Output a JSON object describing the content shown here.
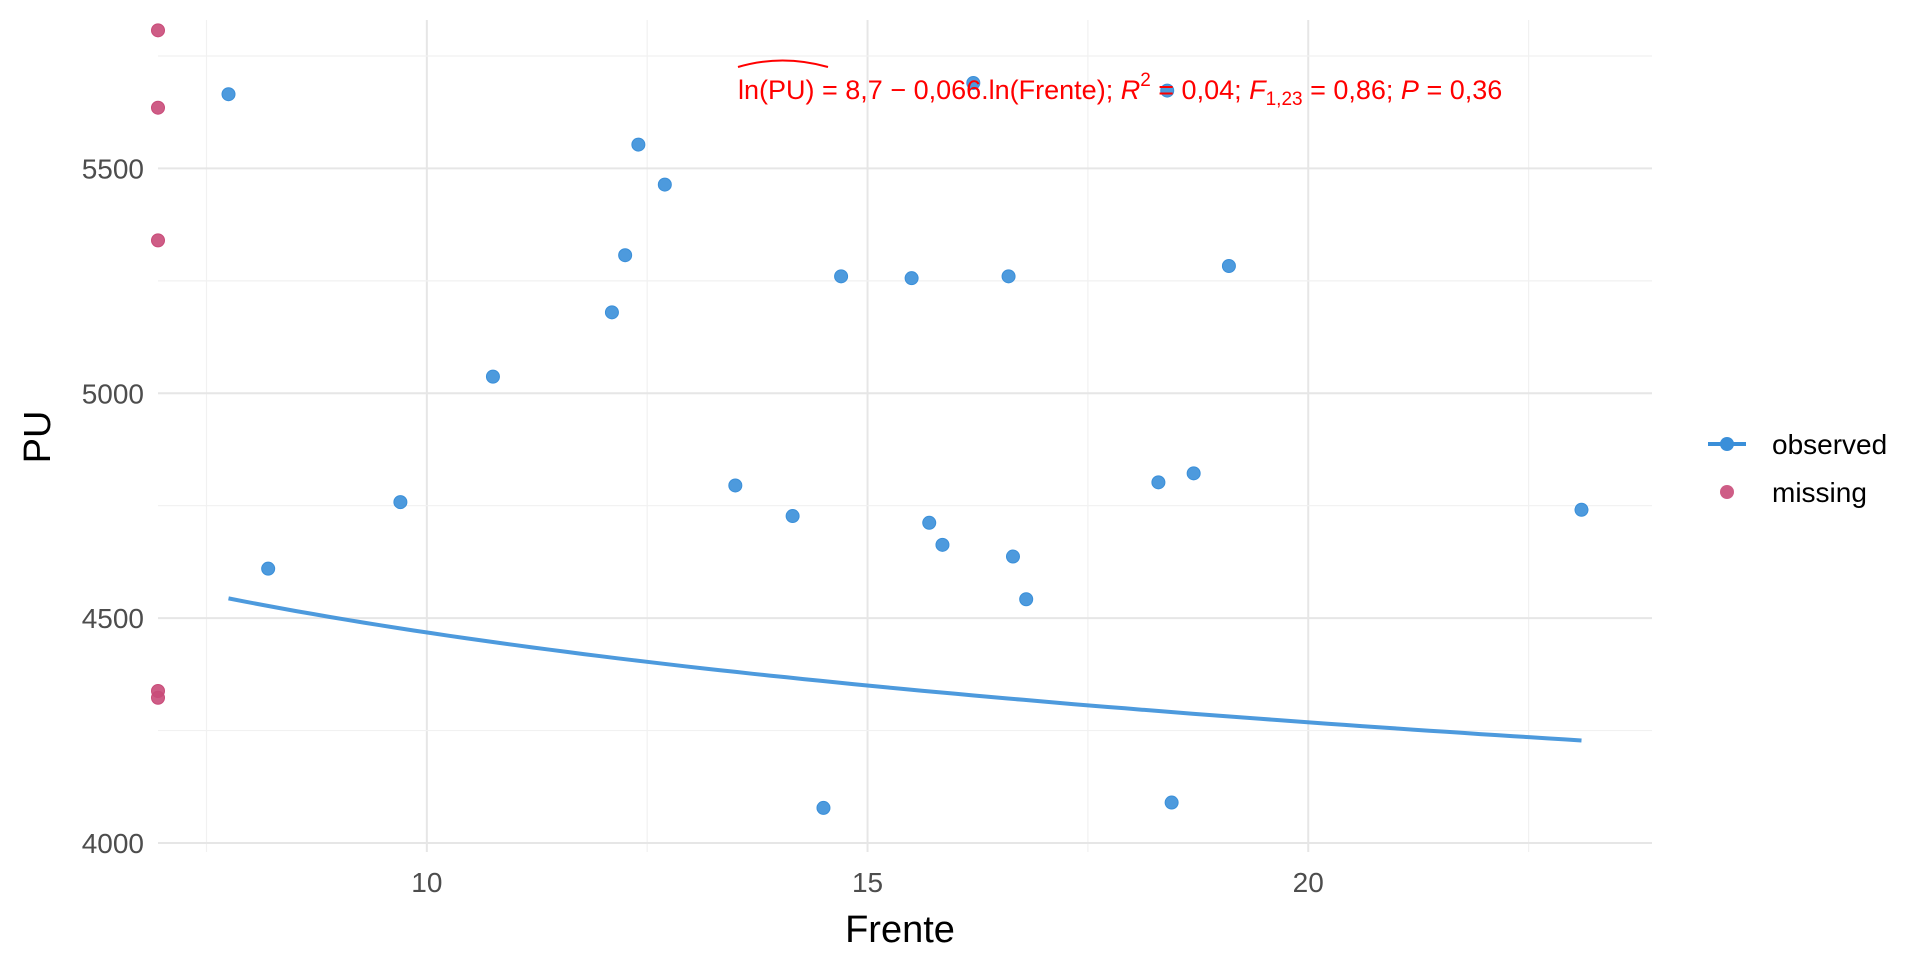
{
  "chart_data": {
    "type": "scatter",
    "xlabel": "Frente",
    "ylabel": "PU",
    "xlim": [
      6.95,
      23.9
    ],
    "ylim": [
      3980,
      5830
    ],
    "x_ticks": [
      10,
      15,
      20
    ],
    "y_ticks": [
      4000,
      4500,
      5000,
      5500
    ],
    "x_tick_labels": [
      "10",
      "15",
      "20"
    ],
    "y_tick_labels": [
      "4000",
      "4500",
      "5000",
      "5500"
    ],
    "grid": true,
    "legend_position": "right",
    "annotation": {
      "hat_term": "ln(PU)",
      "equation": " = 8,7 − 0,066.ln(Frente); ",
      "r2_symbol": "R",
      "r2_exp": "2",
      "r2_value": " = 0,04; ",
      "f_symbol": "F",
      "f_sub": "1,23",
      "f_value": " = 0,86; ",
      "p_symbol": "P",
      "p_value": " = 0,36",
      "color": "#ff0000"
    },
    "fit": {
      "intercept": 8.7,
      "slope": -0.066,
      "x_range": [
        7.75,
        23.1
      ],
      "color": "#3a8fd9"
    },
    "series": [
      {
        "name": "observed",
        "color": "#3a8fd9",
        "points": [
          {
            "x": 7.75,
            "y": 5665
          },
          {
            "x": 8.2,
            "y": 4610
          },
          {
            "x": 9.7,
            "y": 4758
          },
          {
            "x": 10.75,
            "y": 5037
          },
          {
            "x": 12.1,
            "y": 5180
          },
          {
            "x": 12.25,
            "y": 5307
          },
          {
            "x": 12.4,
            "y": 5553
          },
          {
            "x": 12.7,
            "y": 5464
          },
          {
            "x": 13.5,
            "y": 4795
          },
          {
            "x": 14.15,
            "y": 4727
          },
          {
            "x": 14.5,
            "y": 4078
          },
          {
            "x": 14.7,
            "y": 5260
          },
          {
            "x": 15.5,
            "y": 5256
          },
          {
            "x": 15.7,
            "y": 4712
          },
          {
            "x": 15.85,
            "y": 4663
          },
          {
            "x": 16.2,
            "y": 5690
          },
          {
            "x": 16.6,
            "y": 5260
          },
          {
            "x": 16.65,
            "y": 4637
          },
          {
            "x": 16.8,
            "y": 4542
          },
          {
            "x": 18.3,
            "y": 4802
          },
          {
            "x": 18.4,
            "y": 5673
          },
          {
            "x": 18.45,
            "y": 4090
          },
          {
            "x": 18.7,
            "y": 4822
          },
          {
            "x": 19.1,
            "y": 5283
          },
          {
            "x": 23.1,
            "y": 4741
          }
        ]
      },
      {
        "name": "missing",
        "color": "#c94b79",
        "points": [
          {
            "x": 6.95,
            "y": 5807
          },
          {
            "x": 6.95,
            "y": 5635
          },
          {
            "x": 6.95,
            "y": 5340
          },
          {
            "x": 6.95,
            "y": 4338
          },
          {
            "x": 6.95,
            "y": 4323
          }
        ]
      }
    ]
  }
}
